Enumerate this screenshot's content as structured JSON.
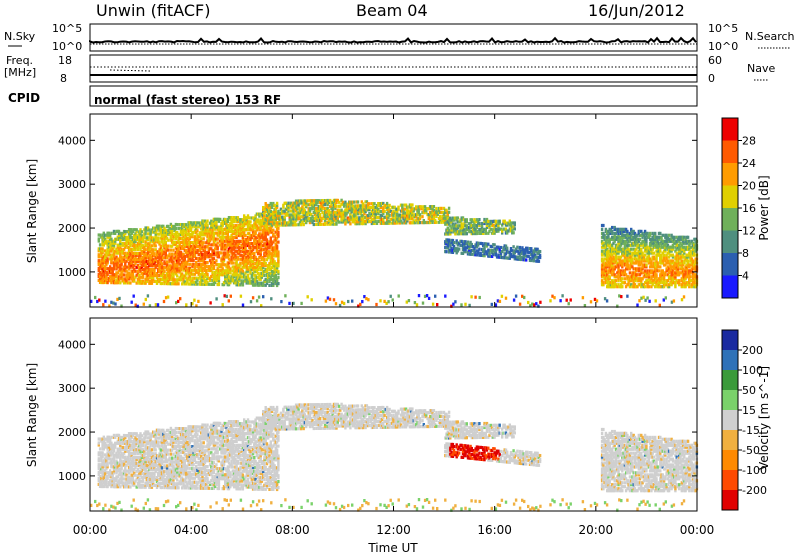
{
  "header": {
    "radar": "Unwin (fitACF)",
    "beam": "Beam 04",
    "date": "16/Jun/2012"
  },
  "panels": {
    "nsky": {
      "label": "N.Sky",
      "ytick_top": "10^5",
      "ytick_bottom": "10^0"
    },
    "nsearch": {
      "label": "N.Search",
      "ytick_top": "10^5",
      "ytick_bottom": "10^0"
    },
    "freq": {
      "label_line1": "Freq.",
      "label_line2": "[MHz]",
      "ytick_top": "18",
      "ytick_bottom": "8"
    },
    "nave": {
      "label": "Nave",
      "ytick_top": "60",
      "ytick_bottom": "0"
    },
    "cpid": {
      "label": "CPID",
      "mode": "normal (fast stereo) 153 RF"
    }
  },
  "chart_data": [
    {
      "type": "heatmap",
      "name": "power",
      "ylabel": "Slant Range [km]",
      "yticks": [
        "1000",
        "2000",
        "3000",
        "4000"
      ],
      "ylim": [
        200,
        4600
      ],
      "colorbar": {
        "label": "Power [dB]",
        "ticks": [
          "4",
          "8",
          "12",
          "16",
          "20",
          "24",
          "28"
        ],
        "colors": [
          "#1a1aff",
          "#2b5fb0",
          "#4f8f7f",
          "#6fb05a",
          "#e0d000",
          "#ff9c00",
          "#ff5a00",
          "#ee0000"
        ]
      }
    },
    {
      "type": "heatmap",
      "name": "velocity",
      "ylabel": "Slant Range [km]",
      "yticks": [
        "1000",
        "2000",
        "3000",
        "4000"
      ],
      "ylim": [
        200,
        4600
      ],
      "colorbar": {
        "label": "Velocity [m s^-1]",
        "ticks": [
          "200",
          "100",
          "50",
          "15",
          "-15",
          "-50",
          "-100",
          "-200"
        ],
        "colors": [
          "#1a2aa0",
          "#2f72b8",
          "#3a9a3a",
          "#7ad26a",
          "#cfcfcf",
          "#f0b040",
          "#ff8a00",
          "#ff4a00",
          "#e00000"
        ]
      }
    }
  ],
  "xaxis": {
    "label": "Time UT",
    "ticks": [
      "00:00",
      "04:00",
      "08:00",
      "12:00",
      "16:00",
      "20:00",
      "00:00"
    ]
  }
}
